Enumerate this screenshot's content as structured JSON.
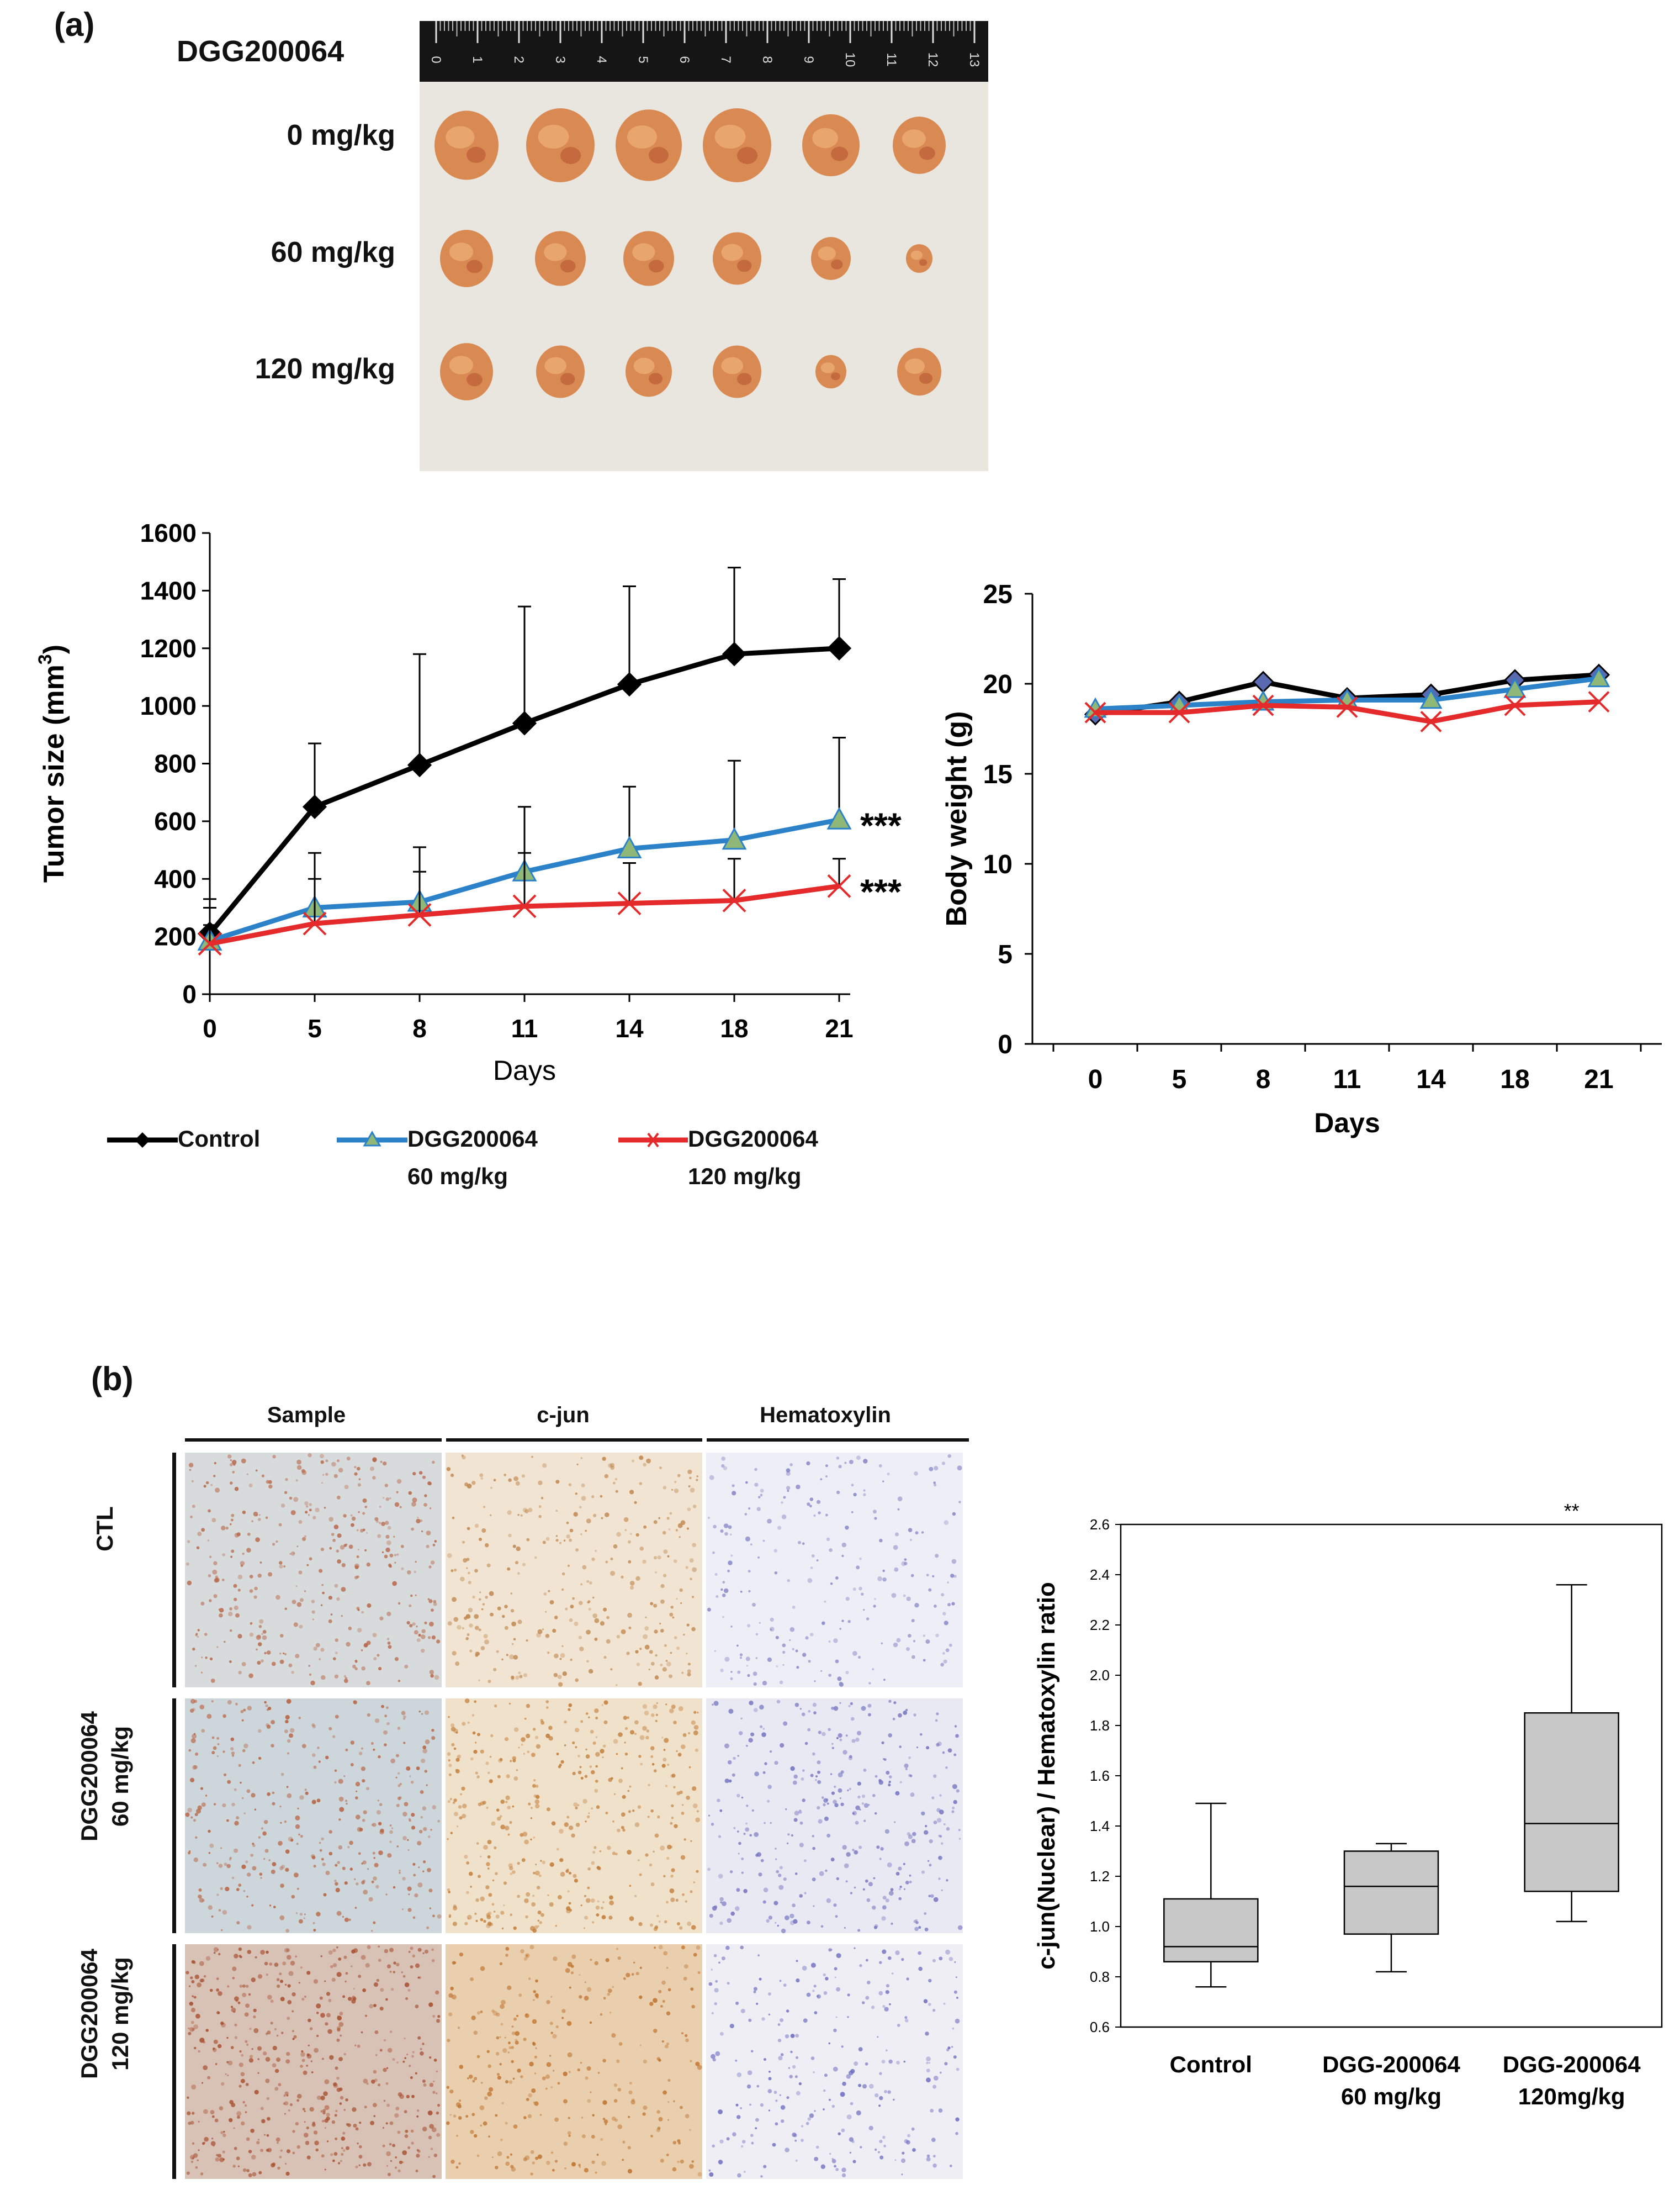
{
  "panel_a": {
    "label": "(a)",
    "photo": {
      "title": "DGG200064",
      "rows": [
        "0 mg/kg",
        "60 mg/kg",
        "120 mg/kg"
      ],
      "ruler_marks": [
        "0",
        "1",
        "2",
        "3",
        "4",
        "5",
        "6",
        "7",
        "8",
        "9",
        "10",
        "11",
        "12",
        "13"
      ],
      "tumor_color": "#d98a52",
      "background_color": "#e9e6e0"
    },
    "legend": {
      "control": "Control",
      "dose60_line1": "DGG200064",
      "dose60_line2": "60 mg/kg",
      "dose120_line1": "DGG200064",
      "dose120_line2": "120 mg/kg"
    }
  },
  "panel_b": {
    "label": "(b)",
    "col_headers": [
      "Sample",
      "c-jun",
      "Hematoxylin"
    ],
    "row_labels": {
      "ctl": "CTL",
      "dose60_line1": "DGG200064",
      "dose60_line2": "60 mg/kg",
      "dose120_line1": "DGG200064",
      "dose120_line2": "120 mg/kg"
    },
    "tile_colors": {
      "sample_bg": [
        "#d8dbdc",
        "#cdd6da",
        "#d8c2b6"
      ],
      "sample_dot": [
        "#b8684a",
        "#b86140",
        "#a85030"
      ],
      "cjun_bg": [
        "#f1e4d2",
        "#f0e1cb",
        "#e9cfae"
      ],
      "cjun_dot": [
        "#c08850",
        "#c27d38",
        "#c07430"
      ],
      "hema_bg": [
        "#eeeef6",
        "#e9e9f3",
        "#efeef5"
      ],
      "hema_dot": [
        "#8888c8",
        "#7474c0",
        "#7070c0"
      ]
    }
  },
  "chart_data": [
    {
      "type": "line",
      "title": "",
      "xlabel": "Days",
      "ylabel": "Tumor size (mm",
      "ylabel_sup": "3",
      "ylabel_end": ")",
      "x": [
        "0",
        "5",
        "8",
        "11",
        "14",
        "18",
        "21"
      ],
      "ylim": [
        0,
        1600
      ],
      "yticks": [
        0,
        200,
        400,
        600,
        800,
        1000,
        1200,
        1400,
        1600
      ],
      "series": [
        {
          "name": "Control",
          "color": "#000000",
          "marker": "diamond",
          "values": [
            210,
            650,
            795,
            940,
            1075,
            1180,
            1200
          ],
          "error_upper": [
            330,
            870,
            1180,
            1345,
            1415,
            1480,
            1440
          ]
        },
        {
          "name": "DGG200064 60 mg/kg",
          "color": "#2c82c9",
          "marker": "triangle",
          "marker_fill": "#8fb878",
          "values": [
            185,
            300,
            320,
            425,
            505,
            535,
            605
          ],
          "error_upper": [
            300,
            490,
            510,
            650,
            720,
            810,
            890
          ],
          "annotation": "***"
        },
        {
          "name": "DGG200064 120 mg/kg",
          "color": "#e42a2a",
          "marker": "x",
          "values": [
            175,
            245,
            275,
            305,
            315,
            325,
            375
          ],
          "error_upper": [
            240,
            400,
            425,
            490,
            455,
            470,
            470
          ],
          "annotation": "***"
        }
      ]
    },
    {
      "type": "line",
      "title": "",
      "xlabel": "Days",
      "ylabel": "Body weight (g)",
      "x": [
        "0",
        "5",
        "8",
        "11",
        "14",
        "18",
        "21"
      ],
      "ylim": [
        0,
        25
      ],
      "yticks": [
        0,
        5,
        10,
        15,
        20,
        25
      ],
      "series": [
        {
          "name": "Control",
          "color": "#000000",
          "marker": "diamond",
          "marker_fill": "#5a6ab0",
          "values": [
            18.3,
            19.0,
            20.1,
            19.2,
            19.4,
            20.2,
            20.5
          ]
        },
        {
          "name": "DGG200064 60 mg/kg",
          "color": "#2c82c9",
          "marker": "triangle",
          "marker_fill": "#8fb878",
          "values": [
            18.6,
            18.8,
            19.0,
            19.1,
            19.1,
            19.7,
            20.3
          ]
        },
        {
          "name": "DGG200064 120 mg/kg",
          "color": "#e42a2a",
          "marker": "x",
          "values": [
            18.4,
            18.4,
            18.8,
            18.7,
            17.9,
            18.8,
            19.0
          ]
        }
      ]
    },
    {
      "type": "box",
      "title": "",
      "xlabel": "",
      "ylabel": "c-jun(Nuclear) / Hematoxylin ratio",
      "ylim": [
        0.6,
        2.6
      ],
      "yticks": [
        "0.6",
        "0.8",
        "1.0",
        "1.2",
        "1.4",
        "1.6",
        "1.8",
        "2.0",
        "2.2",
        "2.4",
        "2.6"
      ],
      "categories": [
        {
          "line1": "Control",
          "line2": ""
        },
        {
          "line1": "DGG-200064",
          "line2": "60 mg/kg"
        },
        {
          "line1": "DGG-200064",
          "line2": "120mg/kg"
        }
      ],
      "boxes": [
        {
          "min": 0.76,
          "q1": 0.86,
          "median": 0.92,
          "q3": 1.11,
          "max": 1.49,
          "annotation": ""
        },
        {
          "min": 0.82,
          "q1": 0.97,
          "median": 1.16,
          "q3": 1.3,
          "max": 1.33,
          "annotation": ""
        },
        {
          "min": 1.02,
          "q1": 1.14,
          "median": 1.41,
          "q3": 1.85,
          "max": 2.36,
          "annotation": "**"
        }
      ],
      "box_color": "#c8c8c8"
    }
  ]
}
